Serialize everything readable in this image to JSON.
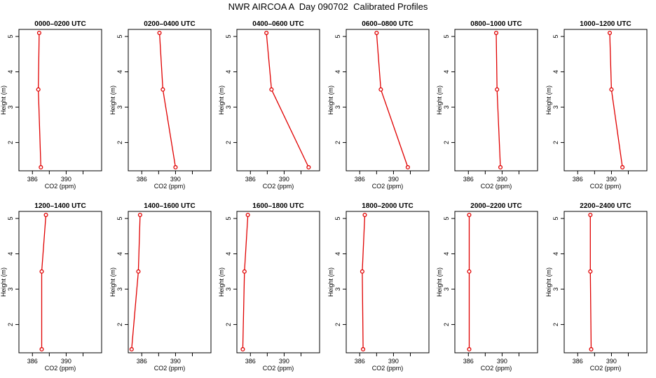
{
  "title": "NWR AIRCOA A  Day 090702  Calibrated Profiles",
  "chart_data": {
    "type": "line",
    "xlabel": "CO2 (ppm)",
    "ylabel": "Height (m)",
    "xlim": [
      384.4,
      394.2
    ],
    "ylim": [
      1.2,
      5.2
    ],
    "xticks": [
      386,
      390
    ],
    "yticks": [
      2,
      3,
      4,
      5
    ],
    "line_color": "#e00000",
    "panels": [
      {
        "title": "0000–0200 UTC",
        "x": [
          386.8,
          386.7,
          387.0
        ],
        "y": [
          5.1,
          3.5,
          1.3
        ]
      },
      {
        "title": "0200–0400 UTC",
        "x": [
          388.1,
          388.5,
          390.0
        ],
        "y": [
          5.1,
          3.5,
          1.3
        ]
      },
      {
        "title": "0400–0600 UTC",
        "x": [
          387.9,
          388.5,
          392.9
        ],
        "y": [
          5.1,
          3.5,
          1.3
        ]
      },
      {
        "title": "0600–0800 UTC",
        "x": [
          388.0,
          388.5,
          391.7
        ],
        "y": [
          5.1,
          3.5,
          1.3
        ]
      },
      {
        "title": "0800–1000 UTC",
        "x": [
          389.3,
          389.4,
          389.8
        ],
        "y": [
          5.1,
          3.5,
          1.3
        ]
      },
      {
        "title": "1000–1200 UTC",
        "x": [
          389.8,
          390.0,
          391.3
        ],
        "y": [
          5.1,
          3.5,
          1.3
        ]
      },
      {
        "title": "1200–1400 UTC",
        "x": [
          387.6,
          387.1,
          387.1
        ],
        "y": [
          5.1,
          3.5,
          1.3
        ]
      },
      {
        "title": "1400–1600 UTC",
        "x": [
          385.8,
          385.6,
          384.8
        ],
        "y": [
          5.1,
          3.5,
          1.3
        ]
      },
      {
        "title": "1600–1800 UTC",
        "x": [
          385.7,
          385.3,
          385.1
        ],
        "y": [
          5.1,
          3.5,
          1.3
        ]
      },
      {
        "title": "1800–2000 UTC",
        "x": [
          386.6,
          386.3,
          386.4
        ],
        "y": [
          5.1,
          3.5,
          1.3
        ]
      },
      {
        "title": "2000–2200 UTC",
        "x": [
          386.1,
          386.1,
          386.1
        ],
        "y": [
          5.1,
          3.5,
          1.3
        ]
      },
      {
        "title": "2200–2400 UTC",
        "x": [
          387.5,
          387.5,
          387.6
        ],
        "y": [
          5.1,
          3.5,
          1.3
        ]
      }
    ]
  }
}
